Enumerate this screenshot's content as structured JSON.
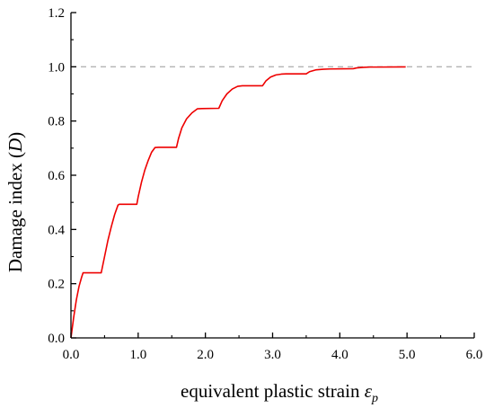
{
  "chart_data": {
    "type": "line",
    "xlabel": "equivalent plastic strain ",
    "xlabel_symbol": "ε",
    "xlabel_subscript": "p",
    "ylabel_text": "Damage index (",
    "ylabel_symbol": "D",
    "ylabel_close": ")",
    "xlim": [
      0,
      6
    ],
    "ylim": [
      0,
      1.2
    ],
    "x_ticks": [
      "0.0",
      "1.0",
      "2.0",
      "3.0",
      "4.0",
      "5.0",
      "6.0"
    ],
    "y_ticks": [
      "0.0",
      "0.2",
      "0.4",
      "0.6",
      "0.8",
      "1.0",
      "1.2"
    ],
    "grid": false,
    "reference_line": {
      "y": 1.0,
      "style": "dashed",
      "color": "#b3b3b3"
    },
    "series": [
      {
        "color": "#ee0000",
        "x": [
          0.0,
          0.04,
          0.08,
          0.12,
          0.16,
          0.18,
          0.2,
          0.45,
          0.5,
          0.55,
          0.6,
          0.65,
          0.7,
          0.72,
          0.98,
          1.0,
          1.05,
          1.1,
          1.15,
          1.2,
          1.25,
          1.3,
          1.57,
          1.6,
          1.65,
          1.72,
          1.8,
          1.88,
          1.95,
          2.2,
          2.25,
          2.32,
          2.4,
          2.48,
          2.55,
          2.85,
          2.9,
          2.97,
          3.05,
          3.13,
          3.2,
          3.5,
          3.55,
          3.65,
          3.75,
          3.85,
          4.2,
          4.25,
          4.35,
          4.45,
          4.6,
          4.98
        ],
        "y": [
          0.0,
          0.075,
          0.14,
          0.19,
          0.225,
          0.24,
          0.24,
          0.24,
          0.3,
          0.36,
          0.41,
          0.455,
          0.49,
          0.493,
          0.493,
          0.52,
          0.575,
          0.62,
          0.655,
          0.685,
          0.702,
          0.703,
          0.703,
          0.735,
          0.775,
          0.808,
          0.83,
          0.845,
          0.846,
          0.847,
          0.875,
          0.9,
          0.918,
          0.928,
          0.93,
          0.93,
          0.948,
          0.962,
          0.97,
          0.973,
          0.974,
          0.974,
          0.982,
          0.989,
          0.991,
          0.992,
          0.993,
          0.996,
          0.998,
          0.999,
          0.999,
          0.9995
        ]
      }
    ]
  }
}
